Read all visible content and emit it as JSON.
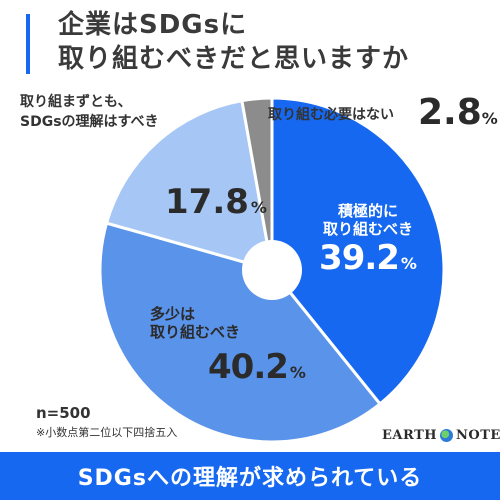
{
  "title": {
    "line1": "企業はSDGsに",
    "line2": "取り組むべきだと思いますか"
  },
  "chart_data": {
    "type": "pie",
    "donut": true,
    "slices": [
      {
        "label_lines": [
          "積極的に",
          "取り組むべき"
        ],
        "value": 39.2,
        "color": "#1668f0"
      },
      {
        "label_lines": [
          "多少は",
          "取り組むべき"
        ],
        "value": 40.2,
        "color": "#5a93ea"
      },
      {
        "label_lines": [
          "取り組まずとも、",
          "SDGsの理解はすべき"
        ],
        "value": 17.8,
        "color": "#a6c7f5"
      },
      {
        "label_lines": [
          "取り組む必要はない"
        ],
        "value": 2.8,
        "color": "#8c8c8c"
      }
    ],
    "percent_suffix": "%"
  },
  "labels": {
    "proactive_name1": "積極的に",
    "proactive_name2": "取り組むべき",
    "proactive_value": "39.2",
    "somewhat_name1": "多少は",
    "somewhat_name2": "取り組むべき",
    "somewhat_value": "40.2",
    "slightly_name1": "取り組まずとも、",
    "slightly_name2": "SDGsの理解はすべき",
    "slightly_value": "17.8",
    "unneeded_name": "取り組む必要はない",
    "unneeded_value": "2.8",
    "pct": "%"
  },
  "sample": {
    "n": "n=500",
    "note": "※小数点第二位以下四捨五入"
  },
  "logo": {
    "left": "EARTH",
    "right": "NOTE"
  },
  "banner": {
    "text": "SDGsへの理解が求められている"
  },
  "colors": {
    "accent": "#1668f0",
    "banner": "#1668f0"
  }
}
